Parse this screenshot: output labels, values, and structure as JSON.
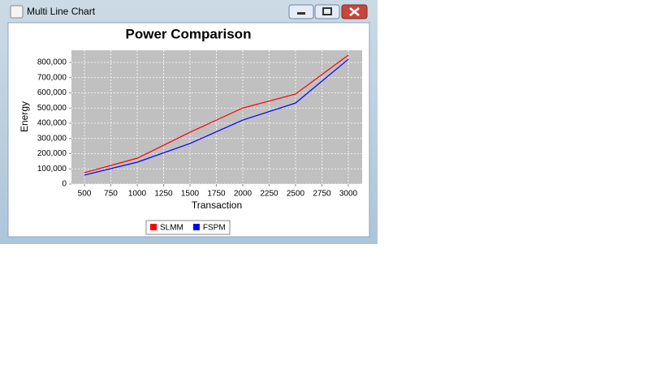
{
  "window": {
    "title": "Multi Line Chart"
  },
  "chart_data": {
    "type": "line",
    "title": "Power Comparison",
    "x_label": "Transaction",
    "y_label": "Energy",
    "x": [
      500,
      1000,
      1500,
      2000,
      2500,
      3000
    ],
    "series": [
      {
        "name": "SLMM",
        "color": "#ff0000",
        "values": [
          75000,
          170000,
          341000,
          500000,
          592000,
          848000
        ]
      },
      {
        "name": "FSPM",
        "color": "#0000ff",
        "values": [
          59000,
          144000,
          267000,
          421000,
          533000,
          821000
        ]
      }
    ],
    "xlim": [
      377,
      3131
    ],
    "xticks": [
      500,
      750,
      1000,
      1250,
      1500,
      1750,
      2000,
      2250,
      2500,
      2750,
      3000
    ],
    "ylim": [
      0,
      880000
    ],
    "yticks": [
      0,
      {
        "value": 100000,
        "label": "100,000"
      },
      {
        "value": 200000,
        "label": "200,000"
      },
      {
        "value": 300000,
        "label": "300,000"
      },
      {
        "value": 400000,
        "label": "400,000"
      },
      {
        "value": 500000,
        "label": "500,000"
      },
      {
        "value": 600000,
        "label": "600,000"
      },
      {
        "value": 700000,
        "label": "700,000"
      },
      {
        "value": 800000,
        "label": "800,000"
      }
    ],
    "grid": true,
    "legend": "bottom"
  }
}
